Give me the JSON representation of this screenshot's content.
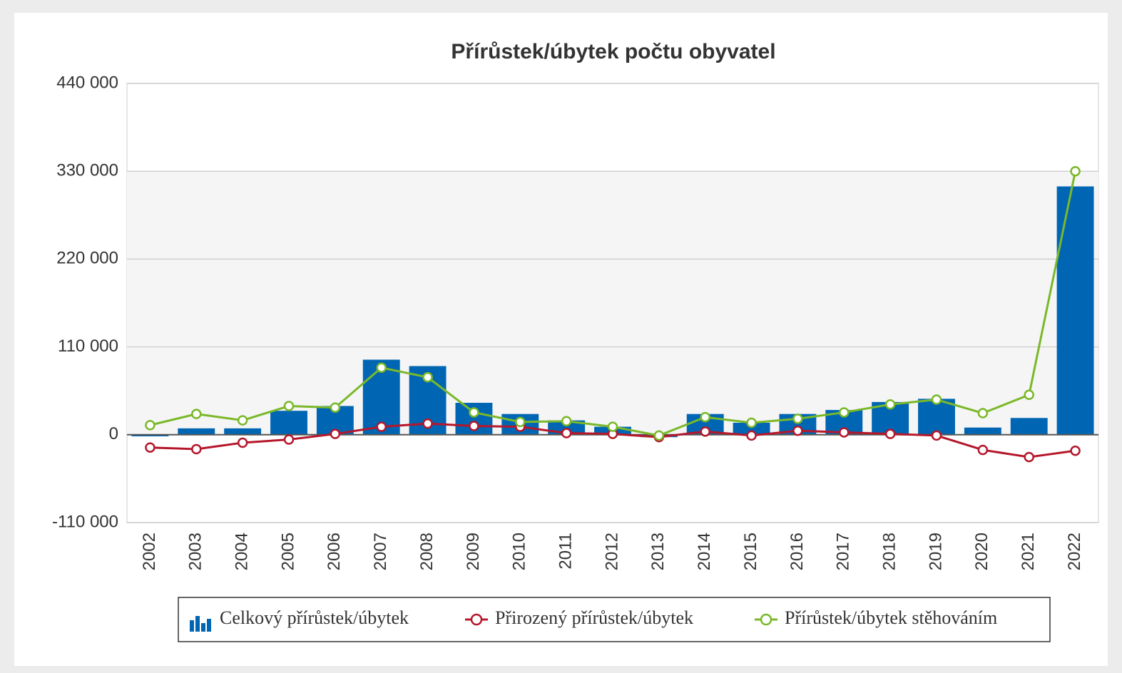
{
  "chart_data": {
    "type": "bar_line",
    "title": "Přírůstek/úbytek počtu obyvatel",
    "categories": [
      "2002",
      "2003",
      "2004",
      "2005",
      "2006",
      "2007",
      "2008",
      "2009",
      "2010",
      "2011",
      "2012",
      "2013",
      "2014",
      "2015",
      "2016",
      "2017",
      "2018",
      "2019",
      "2020",
      "2021",
      "2022"
    ],
    "series": [
      {
        "name": "Celkový přírůstek/úbytek",
        "type": "bar",
        "color": "#0066b3",
        "values": [
          -2000,
          8000,
          8000,
          30000,
          36000,
          94000,
          86000,
          40000,
          26000,
          18000,
          10000,
          -3000,
          26000,
          15000,
          26000,
          31000,
          41000,
          45000,
          9000,
          21000,
          311000
        ]
      },
      {
        "name": "Přirozený přírůstek/úbytek",
        "type": "line",
        "color": "#b5172b",
        "values": [
          -16000,
          -18000,
          -10000,
          -6000,
          1000,
          10000,
          14000,
          11000,
          10000,
          2000,
          1000,
          -3000,
          4000,
          -1000,
          5000,
          3000,
          1000,
          -1000,
          -19000,
          -28000,
          -20000
        ]
      },
      {
        "name": "Přírůstek/úbytek stěhováním",
        "type": "line",
        "color": "#7ab829",
        "values": [
          12000,
          26000,
          18000,
          36000,
          34000,
          84000,
          72000,
          28000,
          16000,
          17000,
          10000,
          -1000,
          22000,
          15000,
          20000,
          28000,
          38000,
          44000,
          27000,
          50000,
          330000
        ]
      }
    ],
    "ylim": [
      -110000,
      440000
    ],
    "yticks": [
      {
        "value": -110000,
        "label": "-110 000"
      },
      0,
      {
        "value": 110000,
        "label": "110 000"
      },
      {
        "value": 220000,
        "label": "220 000"
      },
      {
        "value": 330000,
        "label": "330 000"
      },
      {
        "value": 440000,
        "label": "440 000"
      }
    ],
    "grid": true,
    "legend": "bottom"
  }
}
